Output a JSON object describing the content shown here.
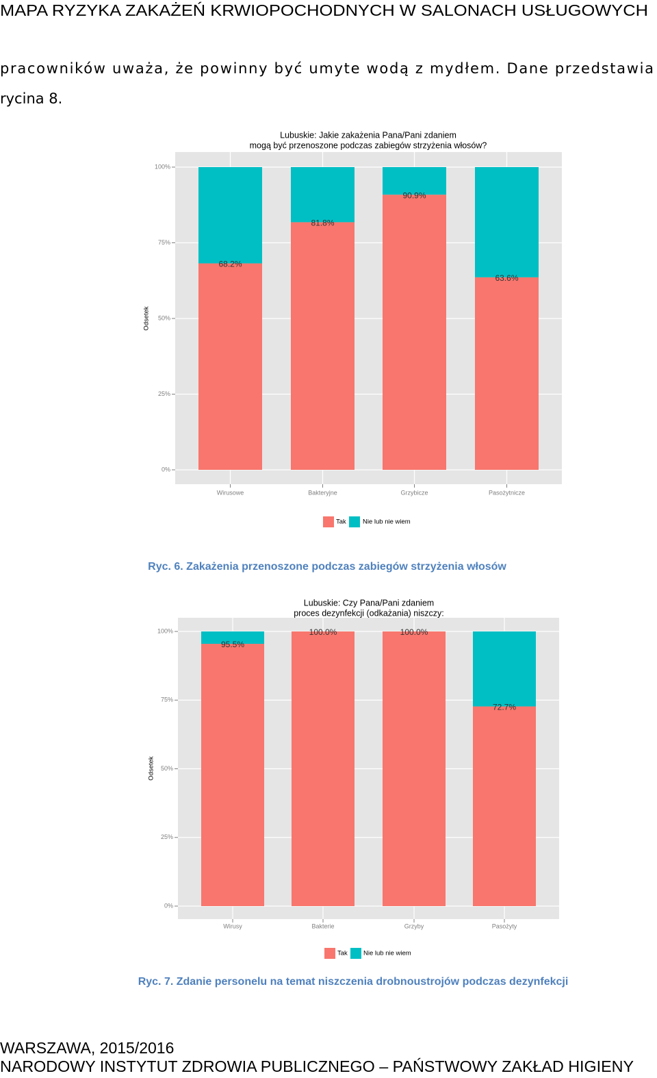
{
  "header": {
    "title": "MAPA RYZYKA ZAKAŻEŃ KRWIOPOCHODNYCH W SALONACH USŁUGOWYCH"
  },
  "paragraph": {
    "lines": [
      "pracowników uważa, że powinny być umyte wodą z mydłem. Dane przedstawia",
      "rycina 8."
    ]
  },
  "chart_data": [
    {
      "type": "stacked-bar",
      "title": [
        "Lubuskie: Jakie zakażenia Pana/Pani zdaniem",
        "mogą być przenoszone podczas zabiegów strzyżenia włosów?"
      ],
      "y_label": "Odsetek",
      "categories": [
        "Wirusowe",
        "Bakteryjne",
        "Grzybicze",
        "Pasożytnicze"
      ],
      "series": [
        {
          "name": "Tak",
          "color": "#f8766d",
          "values": [
            68.2,
            81.8,
            90.9,
            63.6
          ],
          "value_labels": [
            "68.2%",
            "81.8%",
            "90.9%",
            "63.6%"
          ]
        },
        {
          "name": "Nie lub nie wiem",
          "color": "#00bfc4",
          "values": [
            31.8,
            18.2,
            9.1,
            36.4
          ]
        }
      ],
      "ylim": [
        0,
        100
      ],
      "yticks": [
        {
          "value": 0,
          "label": "0%"
        },
        {
          "value": 25,
          "label": "25%"
        },
        {
          "value": 50,
          "label": "50%"
        },
        {
          "value": 75,
          "label": "75%"
        },
        {
          "value": 100,
          "label": "100%"
        }
      ],
      "grid": true,
      "legend": "bottom"
    },
    {
      "type": "stacked-bar",
      "title": [
        "Lubuskie: Czy Pana/Pani zdaniem",
        "proces dezynfekcji (odkażania) niszczy:"
      ],
      "y_label": "Odsetek",
      "categories": [
        "Wirusy",
        "Bakterie",
        "Grzyby",
        "Pasożyty"
      ],
      "series": [
        {
          "name": "Tak",
          "color": "#f8766d",
          "values": [
            95.5,
            100,
            100,
            72.7
          ],
          "value_labels": [
            "95.5%",
            "100.0%",
            "100.0%",
            "72.7%"
          ]
        },
        {
          "name": "Nie lub nie wiem",
          "color": "#00bfc4",
          "values": [
            4.5,
            0,
            0,
            27.3
          ]
        }
      ],
      "ylim": [
        0,
        100
      ],
      "yticks": [
        {
          "value": 0,
          "label": "0%"
        },
        {
          "value": 25,
          "label": "25%"
        },
        {
          "value": 50,
          "label": "50%"
        },
        {
          "value": 75,
          "label": "75%"
        },
        {
          "value": 100,
          "label": "100%"
        }
      ],
      "grid": true,
      "legend": "bottom"
    }
  ],
  "captions": [
    "Ryc. 6. Zakażenia przenoszone podczas zabiegów strzyżenia włosów",
    "Ryc. 7. Zdanie personelu na temat niszczenia drobnoustrojów podczas dezynfekcji"
  ],
  "footer": {
    "lines": [
      "WARSZAWA, 2015/2016",
      "NARODOWY INSTYTUT ZDROWIA PUBLICZNEGO – PAŃSTWOWY ZAKŁAD HIGIENY"
    ]
  }
}
